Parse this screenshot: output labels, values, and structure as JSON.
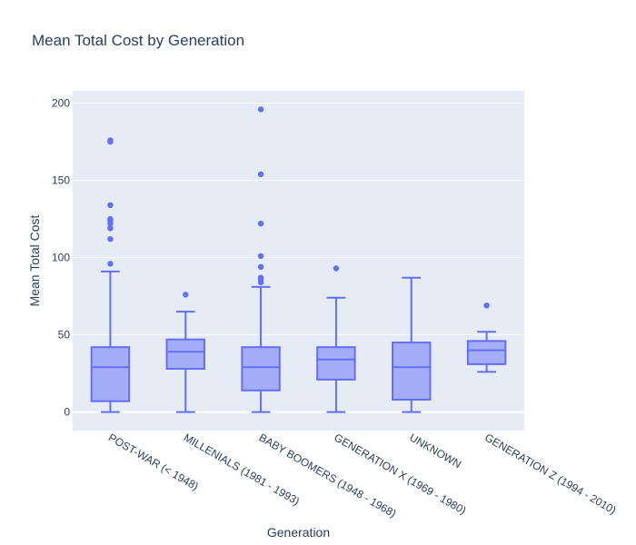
{
  "chart_data": {
    "type": "box",
    "title": "Mean Total Cost by Generation",
    "xlabel": "Generation",
    "ylabel": "Mean Total Cost",
    "ylim": [
      -12,
      208
    ],
    "yticks": [
      0,
      50,
      100,
      150,
      200
    ],
    "grid": true,
    "legend": "none",
    "color": "#636efa",
    "fill_color": "#636efa",
    "plot_background": "#e5ecf6",
    "text_color": "#2a3f5f",
    "categories": [
      "POST-WAR (< 1948)",
      "MILLENIALS (1981 - 1993)",
      "BABY BOOMERS (1948 - 1968)",
      "GENERATION X (1969 - 1980)",
      "UNKNOWN",
      "GENERATION Z (1994 - 2010)"
    ],
    "boxes": [
      {
        "category": "POST-WAR (< 1948)",
        "min": 0,
        "q1": 7,
        "median": 29,
        "q3": 42,
        "max": 91,
        "outliers": [
          96,
          112,
          119,
          122,
          124,
          125,
          134,
          175,
          176
        ]
      },
      {
        "category": "MILLENIALS (1981 - 1993)",
        "min": 0,
        "q1": 28,
        "median": 39,
        "q3": 47,
        "max": 65,
        "outliers": [
          76
        ]
      },
      {
        "category": "BABY BOOMERS (1948 - 1968)",
        "min": 0,
        "q1": 14,
        "median": 29,
        "q3": 42,
        "max": 81,
        "outliers": [
          84,
          86,
          87,
          94,
          101,
          122,
          154,
          196
        ]
      },
      {
        "category": "GENERATION X (1969 - 1980)",
        "min": 0,
        "q1": 21,
        "median": 34,
        "q3": 42,
        "max": 74,
        "outliers": [
          93
        ]
      },
      {
        "category": "UNKNOWN",
        "min": 0,
        "q1": 8,
        "median": 29,
        "q3": 45,
        "max": 87,
        "outliers": []
      },
      {
        "category": "GENERATION Z (1994 - 2010)",
        "min": 26,
        "q1": 31,
        "median": 40,
        "q3": 46,
        "max": 52,
        "outliers": [
          69
        ]
      }
    ]
  }
}
